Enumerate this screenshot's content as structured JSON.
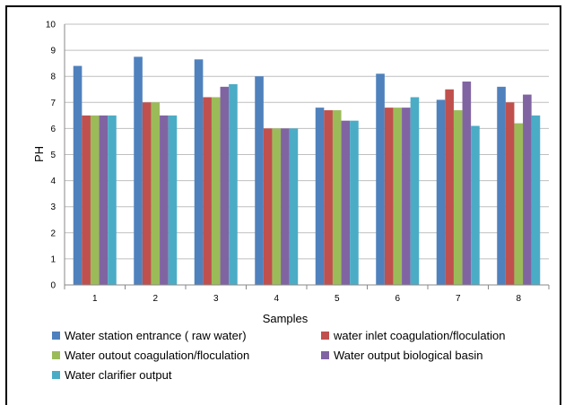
{
  "chart_data": {
    "type": "bar",
    "xlabel": "Samples",
    "ylabel": "PH",
    "ylim": [
      0,
      10
    ],
    "yticks": [
      0,
      1,
      2,
      3,
      4,
      5,
      6,
      7,
      8,
      9,
      10
    ],
    "categories": [
      "1",
      "2",
      "3",
      "4",
      "5",
      "6",
      "7",
      "8"
    ],
    "grid": true,
    "legend_position": "bottom",
    "series": [
      {
        "name": "Water station entrance ( raw water)",
        "color": "#4F81BD",
        "values": [
          8.4,
          8.75,
          8.65,
          8.0,
          6.8,
          8.1,
          7.1,
          7.6
        ]
      },
      {
        "name": "water inlet coagulation/floculation",
        "color": "#C0504D",
        "values": [
          6.5,
          7.0,
          7.2,
          6.0,
          6.7,
          6.8,
          7.5,
          7.0
        ]
      },
      {
        "name": "Water outout coagulation/floculation",
        "color": "#9BBB59",
        "values": [
          6.5,
          7.0,
          7.2,
          6.0,
          6.7,
          6.8,
          6.7,
          6.2
        ]
      },
      {
        "name": "Water output  biological basin",
        "color": "#8064A2",
        "values": [
          6.5,
          6.5,
          7.6,
          6.0,
          6.3,
          6.8,
          7.8,
          7.3
        ]
      },
      {
        "name": "Water clarifier output",
        "color": "#4BACC6",
        "values": [
          6.5,
          6.5,
          7.7,
          6.0,
          6.3,
          7.2,
          6.1,
          6.5
        ]
      }
    ]
  }
}
